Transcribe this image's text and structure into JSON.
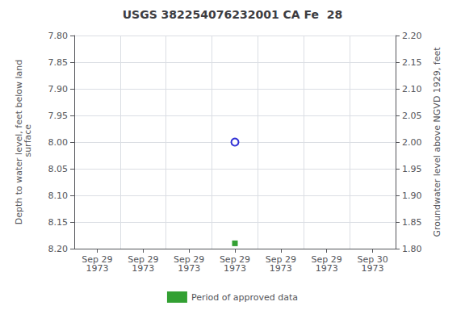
{
  "chart_data": {
    "type": "scatter",
    "title": "USGS 382254076232001 CA Fe  28",
    "ylabel": "Depth to water level, feet below land\n surface",
    "y2label": "Groundwater level above NGVD 1929, feet",
    "categories": [
      "Sep 29\n1973",
      "Sep 29\n1973",
      "Sep 29\n1973",
      "Sep 29\n1973",
      "Sep 29\n1973",
      "Sep 29\n1973",
      "Sep 30\n1973"
    ],
    "ylim": [
      8.2,
      7.8
    ],
    "yticks": [
      {
        "value": 7.8,
        "label": "7.80"
      },
      {
        "value": 7.85,
        "label": "7.85"
      },
      {
        "value": 7.9,
        "label": "7.90"
      },
      {
        "value": 7.95,
        "label": "7.95"
      },
      {
        "value": 8.0,
        "label": "8.00"
      },
      {
        "value": 8.05,
        "label": "8.05"
      },
      {
        "value": 8.1,
        "label": "8.10"
      },
      {
        "value": 8.15,
        "label": "8.15"
      },
      {
        "value": 8.2,
        "label": "8.20"
      }
    ],
    "y2lim": [
      1.8,
      2.2
    ],
    "y2ticks": [
      {
        "value": 2.2,
        "label": "2.20"
      },
      {
        "value": 2.15,
        "label": "2.15"
      },
      {
        "value": 2.1,
        "label": "2.10"
      },
      {
        "value": 2.05,
        "label": "2.05"
      },
      {
        "value": 2.0,
        "label": "2.00"
      },
      {
        "value": 1.95,
        "label": "1.95"
      },
      {
        "value": 1.9,
        "label": "1.90"
      },
      {
        "value": 1.85,
        "label": "1.85"
      },
      {
        "value": 1.8,
        "label": "1.80"
      }
    ],
    "grid": true,
    "legend": "bottom",
    "series": [
      {
        "color": "#0000cc",
        "marker": "open_circle",
        "values": [
          null,
          null,
          null,
          8.0,
          null,
          null,
          null
        ]
      },
      {
        "name": "Period of approved data",
        "color": "#008800",
        "marker": "square",
        "values": [
          null,
          null,
          null,
          8.19,
          null,
          null,
          null
        ]
      }
    ]
  }
}
